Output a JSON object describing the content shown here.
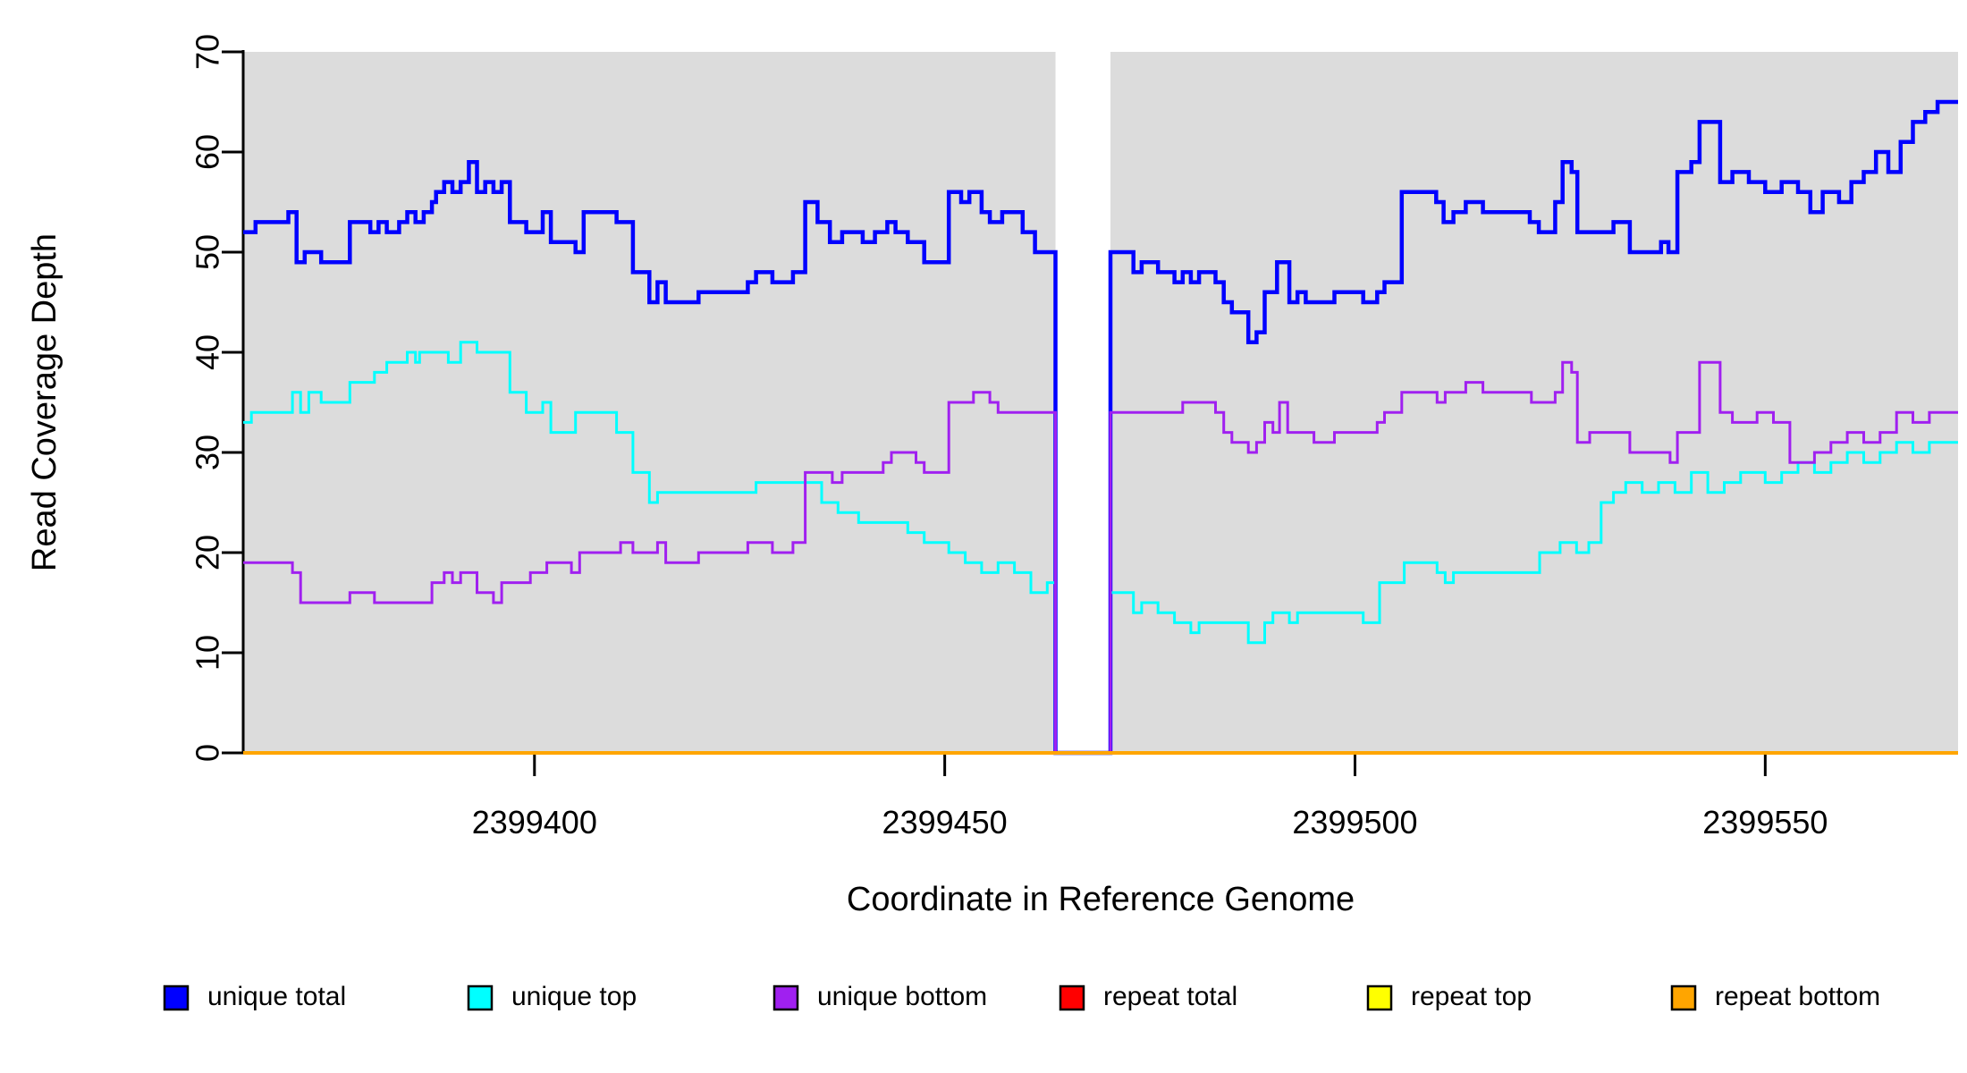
{
  "chart_data": {
    "type": "line",
    "subtype": "step-after-coverage",
    "title": "",
    "xlabel": "Coordinate in Reference Genome",
    "ylabel": "Read Coverage Depth",
    "xlim": [
      2399364.5,
      2399573.5
    ],
    "ylim": [
      0,
      70
    ],
    "y_ticks": [
      0,
      10,
      20,
      30,
      40,
      50,
      60,
      70
    ],
    "x_ticks": [
      2399400,
      2399450,
      2399500,
      2399550
    ],
    "grid": false,
    "panel_color": "#DCDCDC",
    "gap_note": "white uncovered region where unique series drop to 0",
    "covered_regions": [
      [
        2399364.5,
        2399463.5
      ],
      [
        2399470.2,
        2399573.5
      ]
    ],
    "legend_position": "bottom",
    "series": [
      {
        "name": "unique total",
        "color": "#0000FF",
        "width": 4.5,
        "points": [
          [
            2399364.5,
            52
          ],
          [
            2399366,
            53
          ],
          [
            2399370,
            54
          ],
          [
            2399371,
            49
          ],
          [
            2399372,
            50
          ],
          [
            2399374,
            49
          ],
          [
            2399377.5,
            53
          ],
          [
            2399380,
            52
          ],
          [
            2399381,
            53
          ],
          [
            2399382,
            52
          ],
          [
            2399383.5,
            53
          ],
          [
            2399384.5,
            54
          ],
          [
            2399385.5,
            53
          ],
          [
            2399386.5,
            54
          ],
          [
            2399387.5,
            55
          ],
          [
            2399388,
            56
          ],
          [
            2399389,
            57
          ],
          [
            2399390,
            56
          ],
          [
            2399391,
            57
          ],
          [
            2399392,
            59
          ],
          [
            2399393,
            56
          ],
          [
            2399394,
            57
          ],
          [
            2399395,
            56
          ],
          [
            2399396,
            57
          ],
          [
            2399397,
            53
          ],
          [
            2399399,
            52
          ],
          [
            2399401,
            54
          ],
          [
            2399402,
            51
          ],
          [
            2399405,
            50
          ],
          [
            2399406,
            54
          ],
          [
            2399410,
            53
          ],
          [
            2399412,
            48
          ],
          [
            2399414,
            45
          ],
          [
            2399415,
            47
          ],
          [
            2399416,
            45
          ],
          [
            2399420,
            46
          ],
          [
            2399426,
            47
          ],
          [
            2399427,
            48
          ],
          [
            2399429,
            47
          ],
          [
            2399431.5,
            48
          ],
          [
            2399433,
            55
          ],
          [
            2399434.5,
            53
          ],
          [
            2399436,
            51
          ],
          [
            2399437.5,
            52
          ],
          [
            2399440,
            51
          ],
          [
            2399441.5,
            52
          ],
          [
            2399443,
            53
          ],
          [
            2399444,
            52
          ],
          [
            2399445.5,
            51
          ],
          [
            2399447.5,
            49
          ],
          [
            2399450.5,
            56
          ],
          [
            2399452,
            55
          ],
          [
            2399453,
            56
          ],
          [
            2399454.5,
            54
          ],
          [
            2399455.5,
            53
          ],
          [
            2399457,
            54
          ],
          [
            2399459.5,
            52
          ],
          [
            2399461,
            50
          ],
          [
            2399463.5,
            0
          ],
          [
            2399470.2,
            50
          ],
          [
            2399473,
            48
          ],
          [
            2399474,
            49
          ],
          [
            2399476,
            48
          ],
          [
            2399478,
            47
          ],
          [
            2399479,
            48
          ],
          [
            2399480,
            47
          ],
          [
            2399481,
            48
          ],
          [
            2399483,
            47
          ],
          [
            2399484,
            45
          ],
          [
            2399485,
            44
          ],
          [
            2399487,
            41
          ],
          [
            2399488,
            42
          ],
          [
            2399489,
            46
          ],
          [
            2399490.5,
            49
          ],
          [
            2399492,
            45
          ],
          [
            2399493,
            46
          ],
          [
            2399494,
            45
          ],
          [
            2399497.5,
            46
          ],
          [
            2399501,
            45
          ],
          [
            2399502.7,
            46
          ],
          [
            2399503.6,
            47
          ],
          [
            2399505.7,
            56
          ],
          [
            2399509.9,
            55
          ],
          [
            2399510.8,
            53
          ],
          [
            2399512,
            54
          ],
          [
            2399513.5,
            55
          ],
          [
            2399515.6,
            54
          ],
          [
            2399521.3,
            53
          ],
          [
            2399522.4,
            52
          ],
          [
            2399524.4,
            55
          ],
          [
            2399525.3,
            59
          ],
          [
            2399526.4,
            58
          ],
          [
            2399527.1,
            52
          ],
          [
            2399531.5,
            53
          ],
          [
            2399533.5,
            50
          ],
          [
            2399537.3,
            51
          ],
          [
            2399538.2,
            50
          ],
          [
            2399539.3,
            58
          ],
          [
            2399541,
            59
          ],
          [
            2399542,
            63
          ],
          [
            2399544.5,
            57
          ],
          [
            2399546,
            58
          ],
          [
            2399548,
            57
          ],
          [
            2399550,
            56
          ],
          [
            2399552,
            57
          ],
          [
            2399554,
            56
          ],
          [
            2399555.5,
            54
          ],
          [
            2399557,
            56
          ],
          [
            2399559,
            55
          ],
          [
            2399560.5,
            57
          ],
          [
            2399562,
            58
          ],
          [
            2399563.5,
            60
          ],
          [
            2399565,
            58
          ],
          [
            2399566.5,
            61
          ],
          [
            2399568,
            63
          ],
          [
            2399569.5,
            64
          ],
          [
            2399571,
            65
          ]
        ]
      },
      {
        "name": "unique top",
        "color": "#00FFFF",
        "width": 3,
        "points": [
          [
            2399364.5,
            33
          ],
          [
            2399365.5,
            34
          ],
          [
            2399370.5,
            36
          ],
          [
            2399371.5,
            34
          ],
          [
            2399372.5,
            36
          ],
          [
            2399374,
            35
          ],
          [
            2399377.5,
            37
          ],
          [
            2399380.5,
            38
          ],
          [
            2399382,
            39
          ],
          [
            2399384.5,
            40
          ],
          [
            2399385.5,
            39
          ],
          [
            2399386,
            40
          ],
          [
            2399389.5,
            39
          ],
          [
            2399391,
            41
          ],
          [
            2399393,
            40
          ],
          [
            2399397,
            36
          ],
          [
            2399399,
            34
          ],
          [
            2399401,
            35
          ],
          [
            2399402,
            32
          ],
          [
            2399405,
            34
          ],
          [
            2399410,
            32
          ],
          [
            2399412,
            28
          ],
          [
            2399414,
            25
          ],
          [
            2399415,
            26
          ],
          [
            2399427,
            27
          ],
          [
            2399435,
            25
          ],
          [
            2399437,
            24
          ],
          [
            2399439.5,
            23
          ],
          [
            2399445.5,
            22
          ],
          [
            2399447.5,
            21
          ],
          [
            2399450.5,
            20
          ],
          [
            2399452.5,
            19
          ],
          [
            2399454.5,
            18
          ],
          [
            2399456.5,
            19
          ],
          [
            2399458.5,
            18
          ],
          [
            2399460.5,
            16
          ],
          [
            2399462.5,
            17
          ],
          [
            2399463.5,
            0
          ],
          [
            2399470.2,
            16
          ],
          [
            2399473,
            14
          ],
          [
            2399474,
            15
          ],
          [
            2399476,
            14
          ],
          [
            2399478,
            13
          ],
          [
            2399480,
            12
          ],
          [
            2399481,
            13
          ],
          [
            2399487,
            11
          ],
          [
            2399489,
            13
          ],
          [
            2399490,
            14
          ],
          [
            2399492,
            13
          ],
          [
            2399493,
            14
          ],
          [
            2399501,
            13
          ],
          [
            2399503,
            17
          ],
          [
            2399506,
            19
          ],
          [
            2399510,
            18
          ],
          [
            2399511,
            17
          ],
          [
            2399512,
            18
          ],
          [
            2399522.5,
            20
          ],
          [
            2399525,
            21
          ],
          [
            2399527,
            20
          ],
          [
            2399528.5,
            21
          ],
          [
            2399530,
            25
          ],
          [
            2399531.5,
            26
          ],
          [
            2399533,
            27
          ],
          [
            2399535,
            26
          ],
          [
            2399537,
            27
          ],
          [
            2399539,
            26
          ],
          [
            2399541,
            28
          ],
          [
            2399543,
            26
          ],
          [
            2399545,
            27
          ],
          [
            2399547,
            28
          ],
          [
            2399550,
            27
          ],
          [
            2399552,
            28
          ],
          [
            2399554,
            29
          ],
          [
            2399556,
            28
          ],
          [
            2399558,
            29
          ],
          [
            2399560,
            30
          ],
          [
            2399562,
            29
          ],
          [
            2399564,
            30
          ],
          [
            2399566,
            31
          ],
          [
            2399568,
            30
          ],
          [
            2399570,
            31
          ]
        ]
      },
      {
        "name": "unique bottom",
        "color": "#A020F0",
        "width": 3,
        "points": [
          [
            2399364.5,
            19
          ],
          [
            2399370.5,
            18
          ],
          [
            2399371.5,
            15
          ],
          [
            2399377.5,
            16
          ],
          [
            2399380.5,
            15
          ],
          [
            2399387.5,
            17
          ],
          [
            2399389,
            18
          ],
          [
            2399390,
            17
          ],
          [
            2399391,
            18
          ],
          [
            2399393,
            16
          ],
          [
            2399395,
            15
          ],
          [
            2399396,
            17
          ],
          [
            2399399.5,
            18
          ],
          [
            2399401.5,
            19
          ],
          [
            2399404.5,
            18
          ],
          [
            2399405.5,
            20
          ],
          [
            2399410.5,
            21
          ],
          [
            2399412,
            20
          ],
          [
            2399415,
            21
          ],
          [
            2399416,
            19
          ],
          [
            2399420,
            20
          ],
          [
            2399426,
            21
          ],
          [
            2399429,
            20
          ],
          [
            2399431.5,
            21
          ],
          [
            2399433,
            28
          ],
          [
            2399436.3,
            27
          ],
          [
            2399437.5,
            28
          ],
          [
            2399442.5,
            29
          ],
          [
            2399443.5,
            30
          ],
          [
            2399446.5,
            29
          ],
          [
            2399447.5,
            28
          ],
          [
            2399450.5,
            35
          ],
          [
            2399453.5,
            36
          ],
          [
            2399455.5,
            35
          ],
          [
            2399456.5,
            34
          ],
          [
            2399463.5,
            0
          ],
          [
            2399470.2,
            34
          ],
          [
            2399479,
            35
          ],
          [
            2399483,
            34
          ],
          [
            2399484,
            32
          ],
          [
            2399485,
            31
          ],
          [
            2399487,
            30
          ],
          [
            2399488,
            31
          ],
          [
            2399489,
            33
          ],
          [
            2399490,
            32
          ],
          [
            2399490.8,
            35
          ],
          [
            2399491.8,
            32
          ],
          [
            2399495,
            31
          ],
          [
            2399497.5,
            32
          ],
          [
            2399502.7,
            33
          ],
          [
            2399503.6,
            34
          ],
          [
            2399505.7,
            36
          ],
          [
            2399510,
            35
          ],
          [
            2399511,
            36
          ],
          [
            2399513.5,
            37
          ],
          [
            2399515.6,
            36
          ],
          [
            2399521.5,
            35
          ],
          [
            2399524.4,
            36
          ],
          [
            2399525.3,
            39
          ],
          [
            2399526.4,
            38
          ],
          [
            2399527.1,
            31
          ],
          [
            2399528.6,
            32
          ],
          [
            2399533.5,
            30
          ],
          [
            2399538.4,
            29
          ],
          [
            2399539.3,
            32
          ],
          [
            2399542,
            39
          ],
          [
            2399544.5,
            34
          ],
          [
            2399546,
            33
          ],
          [
            2399549,
            34
          ],
          [
            2399551,
            33
          ],
          [
            2399553,
            29
          ],
          [
            2399556,
            30
          ],
          [
            2399558,
            31
          ],
          [
            2399560,
            32
          ],
          [
            2399562,
            31
          ],
          [
            2399564,
            32
          ],
          [
            2399566,
            34
          ],
          [
            2399568,
            33
          ],
          [
            2399570,
            34
          ]
        ]
      },
      {
        "name": "repeat total",
        "color": "#FF0000",
        "width": 3,
        "points": [
          [
            2399364.5,
            0
          ]
        ]
      },
      {
        "name": "repeat top",
        "color": "#FFFF00",
        "width": 3,
        "points": [
          [
            2399364.5,
            0
          ]
        ]
      },
      {
        "name": "repeat bottom",
        "color": "#FFA500",
        "width": 4,
        "points": [
          [
            2399364.5,
            0
          ]
        ]
      }
    ],
    "legend": [
      {
        "label": "unique total",
        "color": "#0000FF"
      },
      {
        "label": "unique top",
        "color": "#00FFFF"
      },
      {
        "label": "unique bottom",
        "color": "#A020F0"
      },
      {
        "label": "repeat total",
        "color": "#FF0000"
      },
      {
        "label": "repeat top",
        "color": "#FFFF00"
      },
      {
        "label": "repeat bottom",
        "color": "#FFA500"
      }
    ]
  },
  "axes": {
    "x_label": "Coordinate in Reference Genome",
    "y_label": "Read Coverage Depth",
    "x_tick_labels": [
      "2399400",
      "2399450",
      "2399500",
      "2399550"
    ],
    "y_tick_labels": [
      "0",
      "10",
      "20",
      "30",
      "40",
      "50",
      "60",
      "70"
    ]
  }
}
